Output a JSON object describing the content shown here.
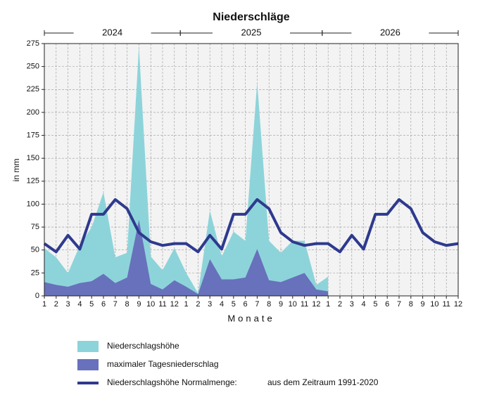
{
  "chart_data": {
    "type": "area-line",
    "title": "Niederschläge",
    "years": [
      "2024",
      "2025",
      "2026"
    ],
    "xlabel": "Monate",
    "ylabel": "in mm",
    "categories": [
      "1",
      "2",
      "3",
      "4",
      "5",
      "6",
      "7",
      "8",
      "9",
      "10",
      "11",
      "12",
      "1",
      "2",
      "3",
      "4",
      "5",
      "6",
      "7",
      "8",
      "9",
      "10",
      "11",
      "12",
      "1",
      "2",
      "3",
      "4",
      "5",
      "6",
      "7",
      "8",
      "9",
      "10",
      "11",
      "12"
    ],
    "series": [
      {
        "name": "Niederschlagshöhe",
        "kind": "area",
        "color": "#8dd4da",
        "values": [
          52,
          42,
          25,
          55,
          75,
          113,
          42,
          47,
          272,
          43,
          28,
          52,
          25,
          3,
          93,
          43,
          70,
          60,
          233,
          60,
          47,
          60,
          60,
          12,
          21,
          null,
          null,
          null,
          null,
          null,
          null,
          null,
          null,
          null,
          null,
          null
        ]
      },
      {
        "name": "maximaler Tagesniederschlag",
        "kind": "area",
        "color": "#6871bb",
        "values": [
          15,
          12,
          10,
          14,
          16,
          24,
          14,
          20,
          83,
          13,
          7,
          17,
          10,
          2,
          40,
          18,
          18,
          20,
          51,
          17,
          15,
          20,
          25,
          7,
          5,
          null,
          null,
          null,
          null,
          null,
          null,
          null,
          null,
          null,
          null,
          null
        ]
      },
      {
        "name": "Niederschlagshöhe Normalmenge:",
        "kind": "line",
        "color": "#2e3a8e",
        "values": [
          57,
          48,
          66,
          51,
          89,
          89,
          105,
          95,
          69,
          59,
          55,
          57,
          57,
          48,
          66,
          51,
          89,
          89,
          105,
          95,
          69,
          59,
          55,
          57,
          57,
          48,
          66,
          51,
          89,
          89,
          105,
          95,
          69,
          59,
          55,
          57
        ]
      }
    ],
    "legend_note": "aus dem Zeitraum 1991-2020",
    "ylim": [
      0,
      275
    ],
    "yticks": [
      0,
      25,
      50,
      75,
      100,
      125,
      150,
      175,
      200,
      225,
      250,
      275
    ],
    "grid": true
  }
}
